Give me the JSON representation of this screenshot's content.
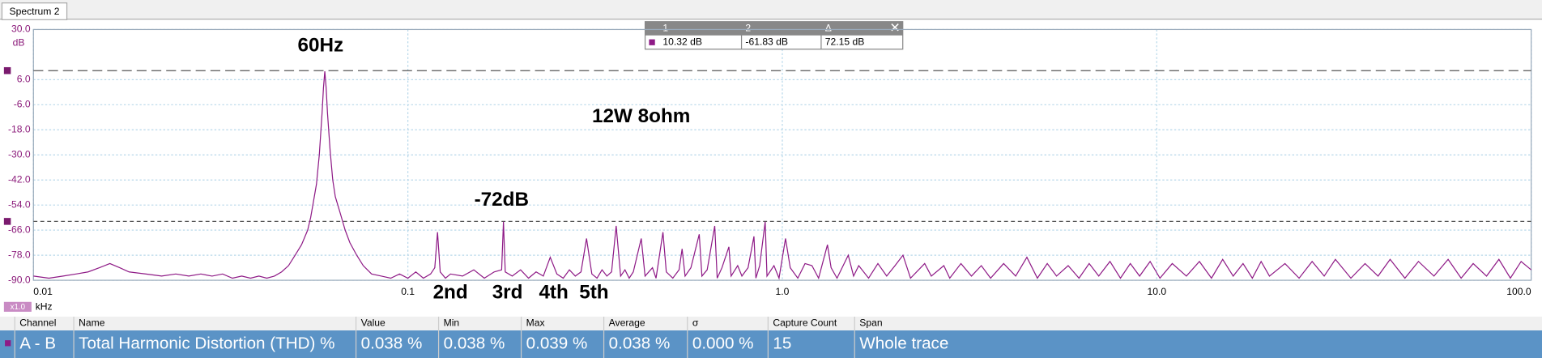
{
  "tab": "Spectrum 2",
  "chart_data": {
    "type": "line",
    "xscale": "log",
    "grid": true,
    "color": "#8e1a86",
    "y_label": "dB",
    "x_label": "kHz",
    "x_scale_badge": "x1.0",
    "annotations": [
      "60Hz",
      "12W 8ohm",
      "-72dB",
      "2nd",
      "3rd",
      "4th",
      "5th"
    ],
    "xlim": [
      0.01,
      100
    ],
    "xticks": [
      0.01,
      0.1,
      {
        "value": 1,
        "label": "1.0"
      },
      {
        "value": 10,
        "label": "10.0"
      },
      {
        "value": 100,
        "label": "100.0"
      }
    ],
    "ylim": [
      -90,
      30
    ],
    "yticks": [
      {
        "value": 30,
        "label": "30.0"
      },
      {
        "value": 6,
        "label": "6.0"
      },
      {
        "value": -6,
        "label": "-6.0"
      },
      {
        "value": -18,
        "label": "-18.0"
      },
      {
        "value": -30,
        "label": "-30.0"
      },
      {
        "value": -42,
        "label": "-42.0"
      },
      {
        "value": -54,
        "label": "-54.0"
      },
      {
        "value": -66,
        "label": "-66.0"
      },
      {
        "value": -78,
        "label": "-78.0"
      },
      {
        "value": -90,
        "label": "-90.0"
      }
    ],
    "rulers": [
      10.32,
      -61.83
    ],
    "x": [
      0.01,
      0.011,
      0.012,
      0.013,
      0.014,
      0.015,
      0.016,
      0.017,
      0.018,
      0.02,
      0.022,
      0.024,
      0.026,
      0.028,
      0.03,
      0.032,
      0.034,
      0.036,
      0.038,
      0.04,
      0.042,
      0.044,
      0.046,
      0.048,
      0.05,
      0.052,
      0.054,
      0.055,
      0.056,
      0.057,
      0.058,
      0.059,
      0.0595,
      0.06,
      0.0605,
      0.061,
      0.062,
      0.063,
      0.064,
      0.066,
      0.068,
      0.07,
      0.073,
      0.076,
      0.08,
      0.085,
      0.09,
      0.095,
      0.1,
      0.105,
      0.11,
      0.115,
      0.118,
      0.12,
      0.122,
      0.126,
      0.13,
      0.14,
      0.15,
      0.16,
      0.17,
      0.178,
      0.18,
      0.182,
      0.19,
      0.2,
      0.21,
      0.22,
      0.23,
      0.24,
      0.25,
      0.26,
      0.27,
      0.28,
      0.29,
      0.3,
      0.31,
      0.32,
      0.33,
      0.34,
      0.35,
      0.36,
      0.37,
      0.38,
      0.39,
      0.4,
      0.42,
      0.43,
      0.45,
      0.46,
      0.48,
      0.49,
      0.51,
      0.53,
      0.54,
      0.55,
      0.57,
      0.6,
      0.61,
      0.63,
      0.66,
      0.67,
      0.69,
      0.72,
      0.73,
      0.76,
      0.78,
      0.81,
      0.84,
      0.85,
      0.87,
      0.9,
      0.91,
      0.95,
      0.98,
      1.02,
      1.05,
      1.1,
      1.15,
      1.2,
      1.25,
      1.32,
      1.35,
      1.4,
      1.5,
      1.55,
      1.6,
      1.7,
      1.8,
      1.9,
      2.0,
      2.1,
      2.2,
      2.4,
      2.5,
      2.7,
      2.8,
      3.0,
      3.2,
      3.4,
      3.6,
      3.9,
      4.2,
      4.5,
      4.8,
      5.1,
      5.4,
      5.8,
      6.2,
      6.6,
      7.0,
      7.5,
      8.0,
      8.5,
      9.0,
      9.6,
      10.2,
      11,
      12,
      13,
      14,
      15,
      16,
      17,
      18,
      19,
      20,
      22,
      24,
      26,
      28,
      30,
      33,
      36,
      39,
      42,
      46,
      50,
      55,
      60,
      65,
      70,
      76,
      82,
      88,
      94,
      100
    ],
    "values": [
      -88,
      -89,
      -88,
      -87,
      -86,
      -84,
      -82,
      -84,
      -86,
      -87,
      -88,
      -87,
      -88,
      -87,
      -88,
      -87,
      -89,
      -88,
      -89,
      -88,
      -89,
      -88,
      -86,
      -83,
      -78,
      -73,
      -66,
      -60,
      -52,
      -44,
      -30,
      -10,
      2,
      10,
      2,
      -10,
      -28,
      -42,
      -50,
      -58,
      -66,
      -72,
      -78,
      -83,
      -87,
      -88,
      -89,
      -87,
      -89,
      -86,
      -89,
      -87,
      -84,
      -67,
      -86,
      -89,
      -87,
      -88,
      -85,
      -89,
      -86,
      -85,
      -62,
      -86,
      -88,
      -85,
      -89,
      -86,
      -88,
      -79,
      -87,
      -89,
      -85,
      -88,
      -86,
      -70,
      -87,
      -89,
      -85,
      -88,
      -86,
      -64,
      -88,
      -85,
      -89,
      -86,
      -70,
      -88,
      -84,
      -89,
      -67,
      -86,
      -89,
      -85,
      -75,
      -88,
      -84,
      -68,
      -88,
      -85,
      -64,
      -89,
      -84,
      -74,
      -88,
      -83,
      -88,
      -84,
      -69,
      -89,
      -83,
      -62,
      -88,
      -83,
      -89,
      -70,
      -84,
      -89,
      -82,
      -83,
      -89,
      -73,
      -84,
      -89,
      -78,
      -88,
      -83,
      -89,
      -82,
      -88,
      -83,
      -78,
      -89,
      -82,
      -88,
      -83,
      -89,
      -82,
      -88,
      -83,
      -89,
      -82,
      -88,
      -79,
      -89,
      -82,
      -88,
      -83,
      -89,
      -82,
      -88,
      -81,
      -89,
      -82,
      -88,
      -81,
      -89,
      -82,
      -88,
      -81,
      -89,
      -80,
      -88,
      -82,
      -89,
      -81,
      -88,
      -82,
      -89,
      -81,
      -88,
      -80,
      -89,
      -82,
      -88,
      -80,
      -89,
      -81,
      -88,
      -80,
      -89,
      -82,
      -88,
      -80,
      -89,
      -81,
      -85
    ]
  },
  "ruler_table": {
    "headers": [
      "1",
      "2",
      "Δ"
    ],
    "values": [
      "10.32 dB",
      "-61.83 dB",
      "72.15 dB"
    ]
  },
  "measurements": {
    "headers": [
      "Channel",
      "Name",
      "Value",
      "Min",
      "Max",
      "Average",
      "σ",
      "Capture Count",
      "Span"
    ],
    "rows": [
      [
        "A - B",
        "Total Harmonic Distortion (THD) %",
        "0.038 %",
        "0.038 %",
        "0.039 %",
        "0.038 %",
        "0.000 %",
        "15",
        "Whole trace"
      ]
    ]
  }
}
